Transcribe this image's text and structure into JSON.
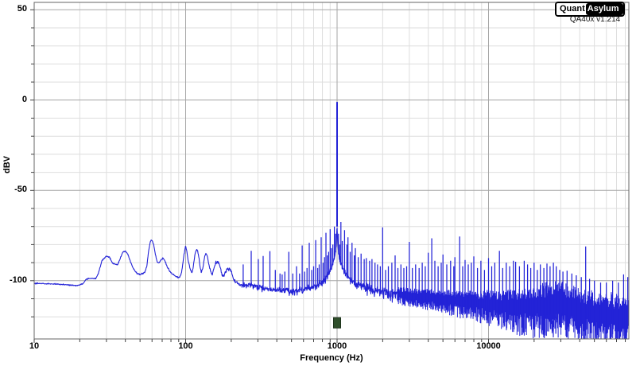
{
  "app": {
    "logo": {
      "part1": "Quant",
      "part2": "Asylum"
    },
    "version": "QA40x v1.214"
  },
  "chart_data": {
    "type": "line",
    "title": "",
    "xlabel": "Frequency (Hz)",
    "ylabel": "dBV",
    "x_scale": "log",
    "x_range_hz": [
      10,
      84000
    ],
    "y_range_dbv": [
      -132,
      54
    ],
    "grid": "on",
    "legend": "none",
    "x_ticks": [
      {
        "hz": 10,
        "label": "10"
      },
      {
        "hz": 100,
        "label": "100"
      },
      {
        "hz": 1000,
        "label": "1000"
      },
      {
        "hz": 10000,
        "label": "10000"
      }
    ],
    "y_ticks": [
      {
        "dbv": 50,
        "label": "50"
      },
      {
        "dbv": 0,
        "label": "0"
      },
      {
        "dbv": -50,
        "label": "-50"
      },
      {
        "dbv": -100,
        "label": "-100"
      }
    ],
    "y_minor_step_db": 10,
    "main_tone": {
      "frequency_hz": 1000,
      "level_dbv": -1
    },
    "generator_marker": {
      "frequency_hz": 1000,
      "level_dbv": -123.3,
      "color": "#2f4f2b",
      "border": "#1e331c"
    },
    "trace_color": "#2323d7",
    "colors": {
      "grid_major": "#a6a6a6",
      "grid_minor": "#dedede",
      "plot_border": "#666666",
      "tick": "#444444",
      "text": "#000000",
      "background": "#ffffff"
    },
    "noise_floor_envelope_dbv": [
      [
        10,
        -101.5
      ],
      [
        13,
        -101.8
      ],
      [
        16,
        -102.2
      ],
      [
        19,
        -102.6
      ],
      [
        21,
        -101.8
      ],
      [
        22,
        -99.2
      ],
      [
        24,
        -98.6
      ],
      [
        25.5,
        -98.9
      ],
      [
        26.5,
        -96
      ],
      [
        28,
        -89
      ],
      [
        30,
        -86.3
      ],
      [
        31.5,
        -87.2
      ],
      [
        33,
        -90.5
      ],
      [
        35.5,
        -91.2
      ],
      [
        36.5,
        -89
      ],
      [
        38.5,
        -84.2
      ],
      [
        40,
        -83.6
      ],
      [
        41.5,
        -85.2
      ],
      [
        43,
        -89
      ],
      [
        45,
        -93
      ],
      [
        47.5,
        -95.8
      ],
      [
        50,
        -96.6
      ],
      [
        52,
        -96
      ],
      [
        54,
        -95.2
      ],
      [
        55.5,
        -92
      ],
      [
        57,
        -83.5
      ],
      [
        58.5,
        -78.2
      ],
      [
        60,
        -77.7
      ],
      [
        61.5,
        -80
      ],
      [
        63,
        -85
      ],
      [
        65,
        -89.8
      ],
      [
        67,
        -90.2
      ],
      [
        69,
        -88.2
      ],
      [
        71,
        -87.4
      ],
      [
        73,
        -89
      ],
      [
        76,
        -92.8
      ],
      [
        79,
        -95
      ],
      [
        82,
        -96.4
      ],
      [
        86,
        -97.5
      ],
      [
        90,
        -98.2
      ],
      [
        93,
        -97
      ],
      [
        95,
        -93
      ],
      [
        97,
        -87
      ],
      [
        99,
        -82.5
      ],
      [
        100,
        -81.2
      ],
      [
        102,
        -84
      ],
      [
        104,
        -89
      ],
      [
        107,
        -93.5
      ],
      [
        110,
        -95.2
      ],
      [
        112,
        -93
      ],
      [
        114,
        -88
      ],
      [
        116,
        -84.5
      ],
      [
        118,
        -82.6
      ],
      [
        120,
        -83.2
      ],
      [
        122,
        -86
      ],
      [
        124,
        -91
      ],
      [
        127,
        -95.5
      ],
      [
        130,
        -93
      ],
      [
        133,
        -87.2
      ],
      [
        136,
        -84.8
      ],
      [
        139,
        -86.2
      ],
      [
        142,
        -90.5
      ],
      [
        146,
        -94.6
      ],
      [
        150,
        -96.2
      ],
      [
        154,
        -93.2
      ],
      [
        158,
        -90.2
      ],
      [
        162,
        -89.6
      ],
      [
        166,
        -90.2
      ],
      [
        170,
        -93
      ],
      [
        174,
        -96.8
      ],
      [
        178,
        -97.2
      ],
      [
        182,
        -95.2
      ],
      [
        186,
        -94
      ],
      [
        190,
        -93.4
      ],
      [
        194,
        -93.2
      ],
      [
        198,
        -93.6
      ],
      [
        202,
        -96
      ],
      [
        207,
        -98.6
      ],
      [
        213,
        -100.4
      ],
      [
        220,
        -101.3
      ],
      [
        230,
        -102
      ],
      [
        245,
        -102.6
      ],
      [
        260,
        -101.8
      ],
      [
        275,
        -102.2
      ],
      [
        290,
        -103
      ],
      [
        310,
        -103.6
      ],
      [
        340,
        -104.2
      ],
      [
        380,
        -104.8
      ],
      [
        430,
        -105.2
      ],
      [
        500,
        -105.6
      ],
      [
        600,
        -104.6
      ],
      [
        700,
        -102.8
      ],
      [
        780,
        -101
      ],
      [
        830,
        -99
      ],
      [
        870,
        -96.5
      ],
      [
        905,
        -93.5
      ],
      [
        935,
        -90.5
      ],
      [
        960,
        -87
      ],
      [
        978,
        -83
      ],
      [
        990,
        -78
      ],
      [
        996,
        -72
      ],
      [
        1000,
        -70
      ],
      [
        1004,
        -72
      ],
      [
        1010,
        -78
      ],
      [
        1022,
        -84
      ],
      [
        1040,
        -88
      ],
      [
        1070,
        -91
      ],
      [
        1110,
        -94
      ],
      [
        1170,
        -97
      ],
      [
        1250,
        -99.5
      ],
      [
        1350,
        -101.5
      ],
      [
        1500,
        -103
      ],
      [
        1700,
        -104.3
      ],
      [
        2000,
        -105.5
      ],
      [
        2400,
        -106.6
      ],
      [
        3000,
        -107.6
      ],
      [
        3700,
        -108.4
      ],
      [
        4500,
        -109
      ],
      [
        5500,
        -109.6
      ],
      [
        7000,
        -110.4
      ],
      [
        9000,
        -111.2
      ],
      [
        11000,
        -111.8
      ],
      [
        13000,
        -112.2
      ],
      [
        16000,
        -112.6
      ],
      [
        20000,
        -112
      ],
      [
        24000,
        -110.6
      ],
      [
        27000,
        -109.8
      ],
      [
        30000,
        -110.2
      ],
      [
        34000,
        -111.6
      ],
      [
        40000,
        -113.6
      ],
      [
        47000,
        -115
      ],
      [
        55000,
        -116
      ],
      [
        65000,
        -117
      ],
      [
        75000,
        -117.6
      ],
      [
        84000,
        -118
      ]
    ],
    "noise_spread_db": [
      [
        10,
        0.4,
        0.4
      ],
      [
        60,
        0.5,
        0.5
      ],
      [
        120,
        0.7,
        0.8
      ],
      [
        200,
        1.2,
        1.6
      ],
      [
        300,
        1.7,
        2.6
      ],
      [
        500,
        2,
        3.6
      ],
      [
        900,
        2,
        3.2
      ],
      [
        1200,
        2.4,
        4
      ],
      [
        2000,
        3,
        5.5
      ],
      [
        3000,
        3.6,
        7
      ],
      [
        5000,
        4.5,
        9
      ],
      [
        8000,
        5.5,
        12
      ],
      [
        12000,
        7,
        15
      ],
      [
        16000,
        8,
        18
      ],
      [
        20000,
        9,
        20
      ],
      [
        25000,
        10.5,
        21
      ],
      [
        30000,
        11,
        22
      ],
      [
        40000,
        10,
        22
      ],
      [
        84000,
        10,
        22
      ]
    ],
    "spurs_dbv": [
      [
        240,
        -91
      ],
      [
        271,
        -83.5
      ],
      [
        302,
        -88
      ],
      [
        325,
        -86.3
      ],
      [
        360,
        -83.6
      ],
      [
        391,
        -94
      ],
      [
        420,
        -96
      ],
      [
        434,
        -96.5
      ],
      [
        452,
        -95
      ],
      [
        480,
        -84
      ],
      [
        510,
        -96
      ],
      [
        540,
        -92
      ],
      [
        565,
        -96
      ],
      [
        588,
        -80.5
      ],
      [
        610,
        -95
      ],
      [
        633,
        -93
      ],
      [
        655,
        -79
      ],
      [
        680,
        -94
      ],
      [
        700,
        -92
      ],
      [
        722,
        -77.5
      ],
      [
        745,
        -93
      ],
      [
        762,
        -91
      ],
      [
        785,
        -76
      ],
      [
        808,
        -90
      ],
      [
        826,
        -87
      ],
      [
        844,
        -73.5
      ],
      [
        862,
        -86
      ],
      [
        880,
        -84
      ],
      [
        900,
        -71.5
      ],
      [
        918,
        -82
      ],
      [
        938,
        -80
      ],
      [
        960,
        -70
      ],
      [
        978,
        -74
      ],
      [
        1022,
        -74
      ],
      [
        1042,
        -80
      ],
      [
        1060,
        -67.5
      ],
      [
        1082,
        -78
      ],
      [
        1120,
        -72
      ],
      [
        1160,
        -80
      ],
      [
        1180,
        -76
      ],
      [
        1220,
        -84
      ],
      [
        1255,
        -79
      ],
      [
        1300,
        -86
      ],
      [
        1320,
        -82
      ],
      [
        1380,
        -87
      ],
      [
        1440,
        -85
      ],
      [
        1510,
        -88
      ],
      [
        1560,
        -87.5
      ],
      [
        1640,
        -89
      ],
      [
        1700,
        -88
      ],
      [
        1780,
        -90
      ],
      [
        1850,
        -91
      ],
      [
        1930,
        -92
      ],
      [
        2000,
        -70.5
      ],
      [
        2090,
        -94
      ],
      [
        2180,
        -92
      ],
      [
        2300,
        -90
      ],
      [
        2417,
        -86
      ],
      [
        2520,
        -93
      ],
      [
        2640,
        -91
      ],
      [
        2760,
        -93
      ],
      [
        2880,
        -92
      ],
      [
        3000,
        -78.5
      ],
      [
        3140,
        -93
      ],
      [
        3300,
        -91
      ],
      [
        3480,
        -93
      ],
      [
        3650,
        -90
      ],
      [
        3820,
        -92
      ],
      [
        4000,
        -84.5
      ],
      [
        4217,
        -76.5
      ],
      [
        4420,
        -89
      ],
      [
        4650,
        -92
      ],
      [
        4870,
        -90
      ],
      [
        5000,
        -85.5
      ],
      [
        5300,
        -91
      ],
      [
        5620,
        -89
      ],
      [
        5900,
        -92
      ],
      [
        6000,
        -87
      ],
      [
        6450,
        -75.5
      ],
      [
        6750,
        -92
      ],
      [
        7000,
        -88.5
      ],
      [
        7350,
        -91
      ],
      [
        7700,
        -90
      ],
      [
        8000,
        -86.5
      ],
      [
        8450,
        -93
      ],
      [
        8900,
        -89
      ],
      [
        9400,
        -94
      ],
      [
        10000,
        -87.5
      ],
      [
        10500,
        -92
      ],
      [
        11000,
        -90
      ],
      [
        11800,
        -83.5
      ],
      [
        12400,
        -93
      ],
      [
        13100,
        -90
      ],
      [
        13800,
        -92
      ],
      [
        14600,
        -89
      ],
      [
        15100,
        -89.5
      ],
      [
        16000,
        -92
      ],
      [
        17200,
        -89
      ],
      [
        18100,
        -91
      ],
      [
        19000,
        -93
      ],
      [
        20000,
        -90
      ],
      [
        21000,
        -94
      ],
      [
        22000,
        -91
      ],
      [
        23200,
        -93
      ],
      [
        24300,
        -90.5
      ],
      [
        25500,
        -92
      ],
      [
        26800,
        -90
      ],
      [
        28000,
        -92
      ],
      [
        29500,
        -94
      ],
      [
        31000,
        -95
      ],
      [
        33000,
        -94.5
      ],
      [
        35500,
        -96
      ],
      [
        38000,
        -97
      ],
      [
        41000,
        -98
      ],
      [
        43800,
        -81
      ],
      [
        46500,
        -99
      ],
      [
        50000,
        -100
      ],
      [
        55000,
        -101
      ],
      [
        60000,
        -101
      ],
      [
        66000,
        -100
      ],
      [
        72000,
        -101
      ],
      [
        78000,
        -96.5
      ],
      [
        83000,
        -98
      ]
    ]
  }
}
